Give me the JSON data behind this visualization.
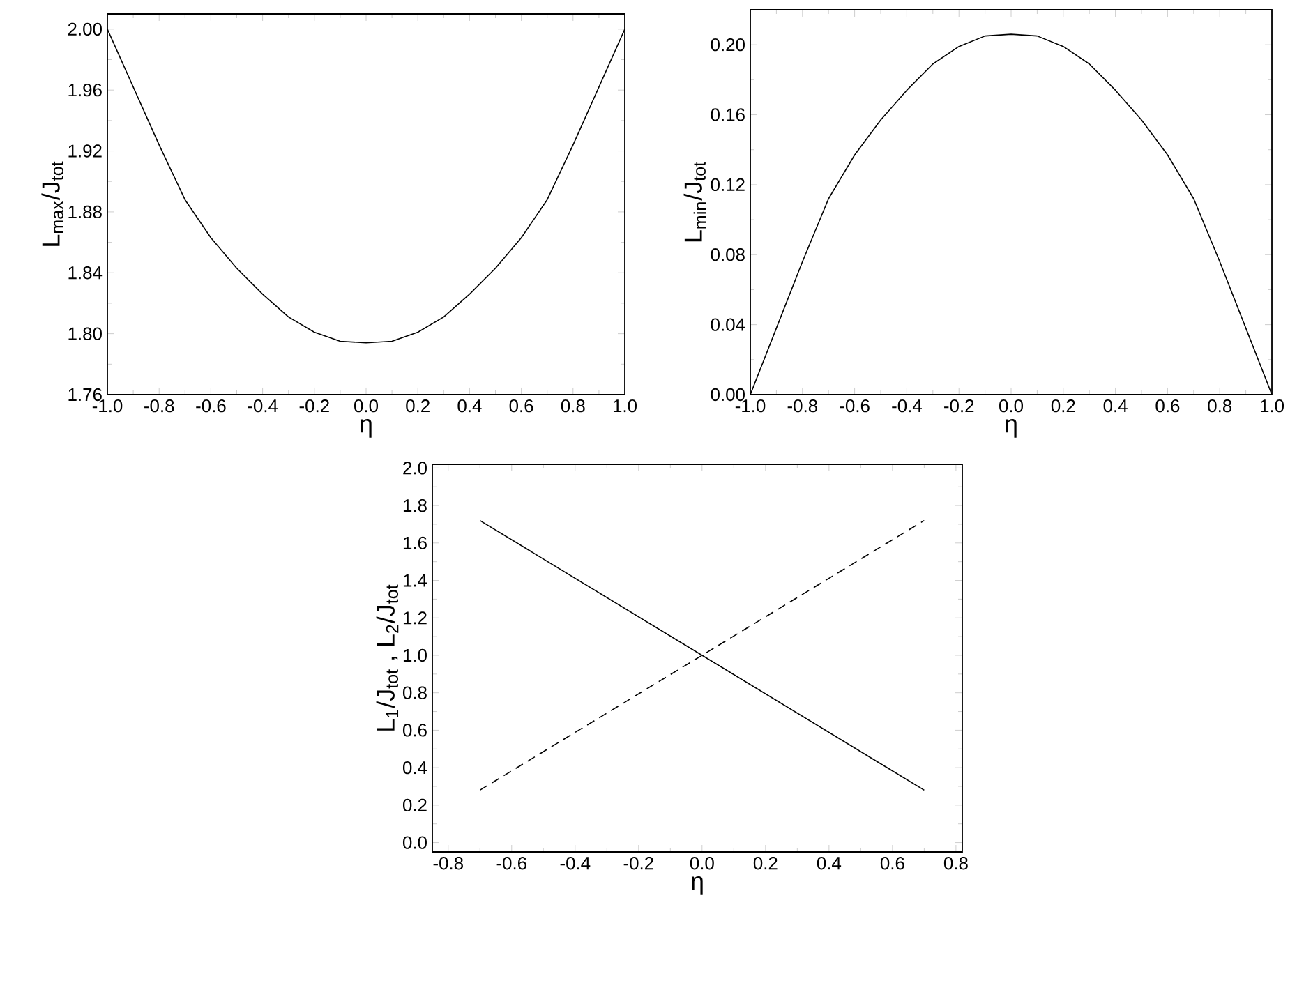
{
  "chart_data": [
    {
      "type": "line",
      "xlabel": "η",
      "ylabel": "L$_{max}$/J$_{tot}$",
      "xlim": [
        -1.0,
        1.0
      ],
      "ylim": [
        1.76,
        2.01
      ],
      "xticks": [
        {
          "value": -1.0,
          "label": "-1.0"
        },
        {
          "value": -0.8,
          "label": "-0.8"
        },
        {
          "value": -0.6,
          "label": "-0.6"
        },
        {
          "value": -0.4,
          "label": "-0.4"
        },
        {
          "value": -0.2,
          "label": "-0.2"
        },
        {
          "value": 0,
          "label": "0.0"
        },
        {
          "value": 0.2,
          "label": "0.2"
        },
        {
          "value": 0.4,
          "label": "0.4"
        },
        {
          "value": 0.6,
          "label": "0.6"
        },
        {
          "value": 0.8,
          "label": "0.8"
        },
        {
          "value": 1.0,
          "label": "1.0"
        }
      ],
      "yticks": [
        1.76,
        {
          "value": 1.8,
          "label": "1.80"
        },
        1.84,
        1.88,
        1.92,
        1.96,
        {
          "value": 2.0,
          "label": "2.00"
        }
      ],
      "series": [
        {
          "color": "#000000",
          "line_style": "solid",
          "x": [
            -1.0,
            -0.9,
            -0.8,
            -0.7,
            -0.6,
            -0.5,
            -0.4,
            -0.3,
            -0.2,
            -0.1,
            0,
            0.1,
            0.2,
            0.3,
            0.4,
            0.5,
            0.6,
            0.7,
            0.8,
            0.9,
            1.0
          ],
          "values": [
            2.0,
            1.962,
            1.924,
            1.888,
            1.863,
            1.843,
            1.826,
            1.811,
            1.801,
            1.795,
            1.794,
            1.795,
            1.801,
            1.811,
            1.826,
            1.843,
            1.863,
            1.888,
            1.924,
            1.962,
            2.0
          ]
        }
      ]
    },
    {
      "type": "line",
      "xlabel": "η",
      "ylabel": "L$_{min}$/J$_{tot}$",
      "xlim": [
        -1.0,
        1.0
      ],
      "ylim": [
        0,
        0.22
      ],
      "xticks": [
        {
          "value": -1.0,
          "label": "-1.0"
        },
        {
          "value": -0.8,
          "label": "-0.8"
        },
        {
          "value": -0.6,
          "label": "-0.6"
        },
        {
          "value": -0.4,
          "label": "-0.4"
        },
        {
          "value": -0.2,
          "label": "-0.2"
        },
        {
          "value": 0,
          "label": "0.0"
        },
        {
          "value": 0.2,
          "label": "0.2"
        },
        {
          "value": 0.4,
          "label": "0.4"
        },
        {
          "value": 0.6,
          "label": "0.6"
        },
        {
          "value": 0.8,
          "label": "0.8"
        },
        {
          "value": 1.0,
          "label": "1.0"
        }
      ],
      "yticks": [
        {
          "value": 0,
          "label": "0.00"
        },
        0.04,
        0.08,
        0.12,
        0.16,
        {
          "value": 0.2,
          "label": "0.20"
        }
      ],
      "series": [
        {
          "color": "#000000",
          "line_style": "solid",
          "x": [
            -1.0,
            -0.9,
            -0.8,
            -0.7,
            -0.6,
            -0.5,
            -0.4,
            -0.3,
            -0.2,
            -0.1,
            0,
            0.1,
            0.2,
            0.3,
            0.4,
            0.5,
            0.6,
            0.7,
            0.8,
            0.9,
            1.0
          ],
          "values": [
            0,
            0.038,
            0.076,
            0.112,
            0.137,
            0.157,
            0.174,
            0.189,
            0.199,
            0.205,
            0.206,
            0.205,
            0.199,
            0.189,
            0.174,
            0.157,
            0.137,
            0.112,
            0.076,
            0.038,
            0
          ]
        }
      ]
    },
    {
      "type": "line",
      "xlabel": "η",
      "ylabel": "L$_{1}$/J$_{tot}$ ,  L$_{2}$/J$_{tot}$",
      "xlim": [
        -0.85,
        0.82
      ],
      "ylim": [
        -0.05,
        2.02
      ],
      "xticks": [
        {
          "value": -0.8,
          "label": "-0.8"
        },
        {
          "value": -0.6,
          "label": "-0.6"
        },
        {
          "value": -0.4,
          "label": "-0.4"
        },
        {
          "value": -0.2,
          "label": "-0.2"
        },
        {
          "value": 0,
          "label": "0.0"
        },
        {
          "value": 0.2,
          "label": "0.2"
        },
        {
          "value": 0.4,
          "label": "0.4"
        },
        {
          "value": 0.6,
          "label": "0.6"
        },
        {
          "value": 0.8,
          "label": "0.8"
        }
      ],
      "yticks": [
        {
          "value": 0,
          "label": "0.0"
        },
        0.2,
        0.4,
        0.6,
        0.8,
        {
          "value": 1.0,
          "label": "1.0"
        },
        1.2,
        1.4,
        1.6,
        1.8,
        {
          "value": 2.0,
          "label": "2.0"
        }
      ],
      "series": [
        {
          "color": "#000000",
          "line_style": "solid",
          "x": [
            -0.7,
            -0.35,
            0,
            0.35,
            0.7
          ],
          "values": [
            1.72,
            1.36,
            1.0,
            0.64,
            0.28
          ]
        },
        {
          "color": "#000000",
          "line_style": "dashed",
          "x": [
            -0.7,
            -0.35,
            0,
            0.35,
            0.7
          ],
          "values": [
            0.28,
            0.64,
            1.0,
            1.36,
            1.72
          ]
        }
      ]
    }
  ]
}
